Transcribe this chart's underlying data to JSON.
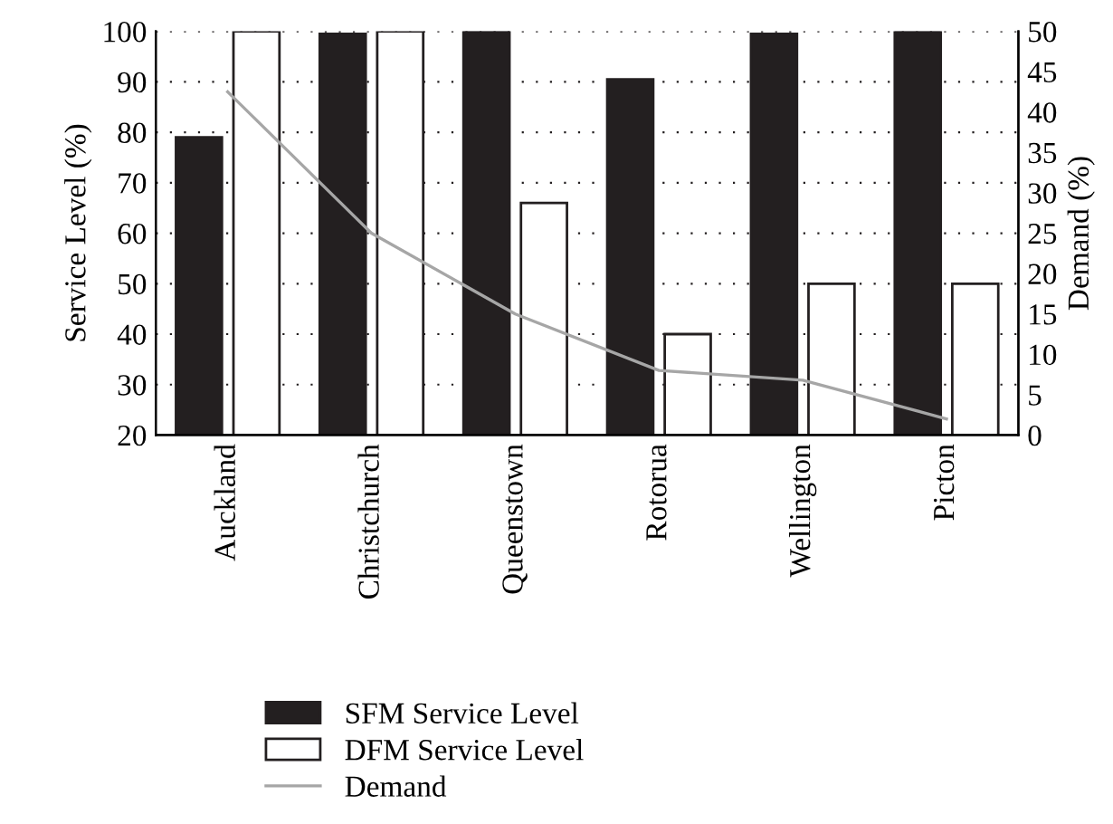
{
  "chart_data": {
    "type": "bar",
    "categories": [
      "Auckland",
      "Christchurch",
      "Queenstown",
      "Rotorua",
      "Wellington",
      "Picton"
    ],
    "ylabel": "Service Level (%)",
    "y2label": "Demand (%)",
    "series": [
      {
        "name": "SFM Service Level",
        "color": "#231f20",
        "values": [
          79,
          99.5,
          100,
          90.5,
          99.5,
          100
        ]
      },
      {
        "name": "DFM Service Level",
        "color": "#ffffff",
        "values": [
          100,
          100,
          66,
          40,
          50,
          50
        ]
      },
      {
        "name": "Demand",
        "type": "line",
        "axis": "y2",
        "color": "#a6a6a6",
        "values": [
          42.5,
          25,
          15,
          8,
          6.8,
          2
        ]
      }
    ],
    "ylim": [
      20,
      100
    ],
    "yticks": [
      20,
      30,
      40,
      50,
      60,
      70,
      80,
      90,
      100
    ],
    "y2lim": [
      0,
      50
    ],
    "y2ticks": [
      0,
      5,
      10,
      15,
      20,
      25,
      30,
      35,
      40,
      45,
      50
    ],
    "grid": "y",
    "legend": "bottom",
    "marker": "none",
    "line_style": "solid"
  }
}
